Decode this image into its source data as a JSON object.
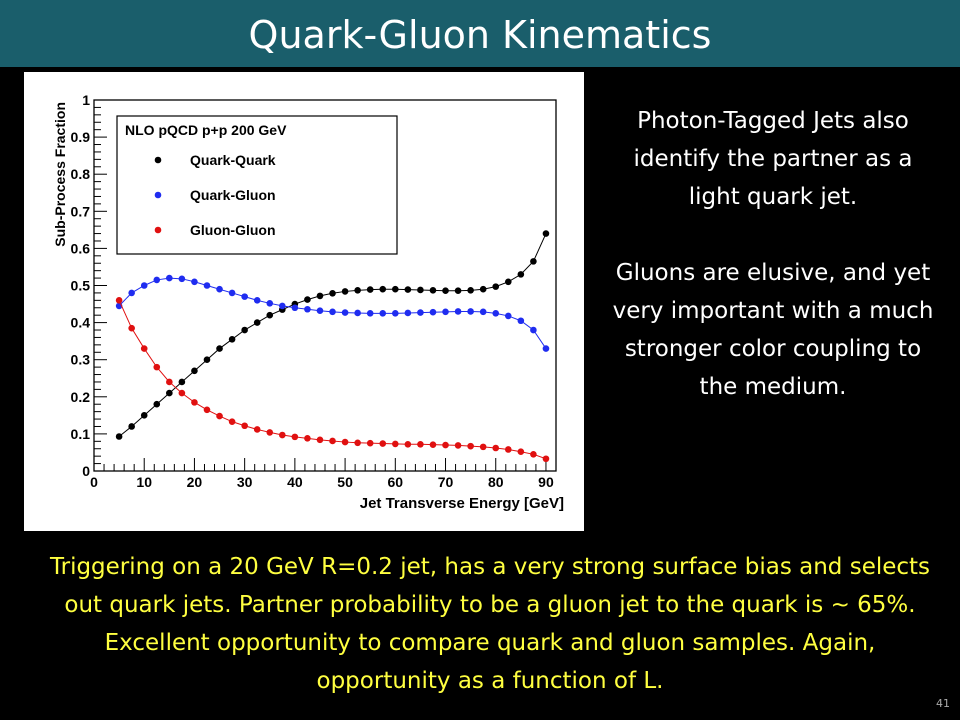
{
  "slide": {
    "title": "Quark-Gluon Kinematics",
    "side_paragraphs": [
      "Photon-Tagged Jets also identify the partner as a light quark jet.",
      "Gluons are elusive, and yet very important with a much stronger color coupling to the medium."
    ],
    "bottom_text": "Triggering on a 20 GeV R=0.2 jet, has a very strong surface bias and selects out quark jets.   Partner probability to be a gluon jet to the quark is ~ 65%.    Excellent opportunity to compare quark and gluon samples.   Again, opportunity as a function of L.",
    "page_number": "41"
  },
  "colors": {
    "title_bar": "#1a5e6b",
    "quark_quark": "#000000",
    "quark_gluon": "#1f2cf0",
    "gluon_gluon": "#e01010",
    "bottom_text": "#ffff40"
  },
  "chart_data": {
    "type": "scatter",
    "legend_title": "NLO pQCD p+p 200 GeV",
    "xlabel": "Jet Transverse Energy [GeV]",
    "ylabel": "Sub-Process Fraction",
    "xlim": [
      0,
      92
    ],
    "ylim": [
      0,
      1
    ],
    "x_ticks": [
      "0",
      "10",
      "20",
      "30",
      "40",
      "50",
      "60",
      "70",
      "80",
      "90"
    ],
    "y_ticks": [
      "0",
      "0.1",
      "0.2",
      "0.3",
      "0.4",
      "0.5",
      "0.6",
      "0.7",
      "0.8",
      "0.9",
      "1"
    ],
    "legend_position": "top-left",
    "x": [
      5,
      7.5,
      10,
      12.5,
      15,
      17.5,
      20,
      22.5,
      25,
      27.5,
      30,
      32.5,
      35,
      37.5,
      40,
      42.5,
      45,
      47.5,
      50,
      52.5,
      55,
      57.5,
      60,
      62.5,
      65,
      67.5,
      70,
      72.5,
      75,
      77.5,
      80,
      82.5,
      85,
      87.5,
      90
    ],
    "series": [
      {
        "name": "Quark-Quark",
        "values": [
          0.093,
          0.12,
          0.15,
          0.18,
          0.21,
          0.24,
          0.27,
          0.3,
          0.33,
          0.355,
          0.38,
          0.4,
          0.42,
          0.435,
          0.45,
          0.462,
          0.472,
          0.479,
          0.484,
          0.487,
          0.489,
          0.49,
          0.49,
          0.489,
          0.488,
          0.487,
          0.486,
          0.486,
          0.487,
          0.49,
          0.497,
          0.51,
          0.53,
          0.565,
          0.64
        ]
      },
      {
        "name": "Quark-Gluon",
        "values": [
          0.445,
          0.48,
          0.5,
          0.515,
          0.52,
          0.518,
          0.51,
          0.5,
          0.49,
          0.48,
          0.47,
          0.46,
          0.452,
          0.445,
          0.44,
          0.436,
          0.432,
          0.429,
          0.427,
          0.426,
          0.425,
          0.425,
          0.425,
          0.426,
          0.427,
          0.428,
          0.429,
          0.43,
          0.43,
          0.429,
          0.425,
          0.418,
          0.405,
          0.38,
          0.33
        ]
      },
      {
        "name": "Gluon-Gluon",
        "values": [
          0.46,
          0.385,
          0.33,
          0.28,
          0.24,
          0.21,
          0.185,
          0.165,
          0.148,
          0.133,
          0.122,
          0.112,
          0.104,
          0.097,
          0.092,
          0.088,
          0.084,
          0.081,
          0.078,
          0.076,
          0.075,
          0.074,
          0.073,
          0.072,
          0.072,
          0.071,
          0.07,
          0.069,
          0.067,
          0.065,
          0.062,
          0.058,
          0.052,
          0.045,
          0.033
        ]
      }
    ]
  }
}
